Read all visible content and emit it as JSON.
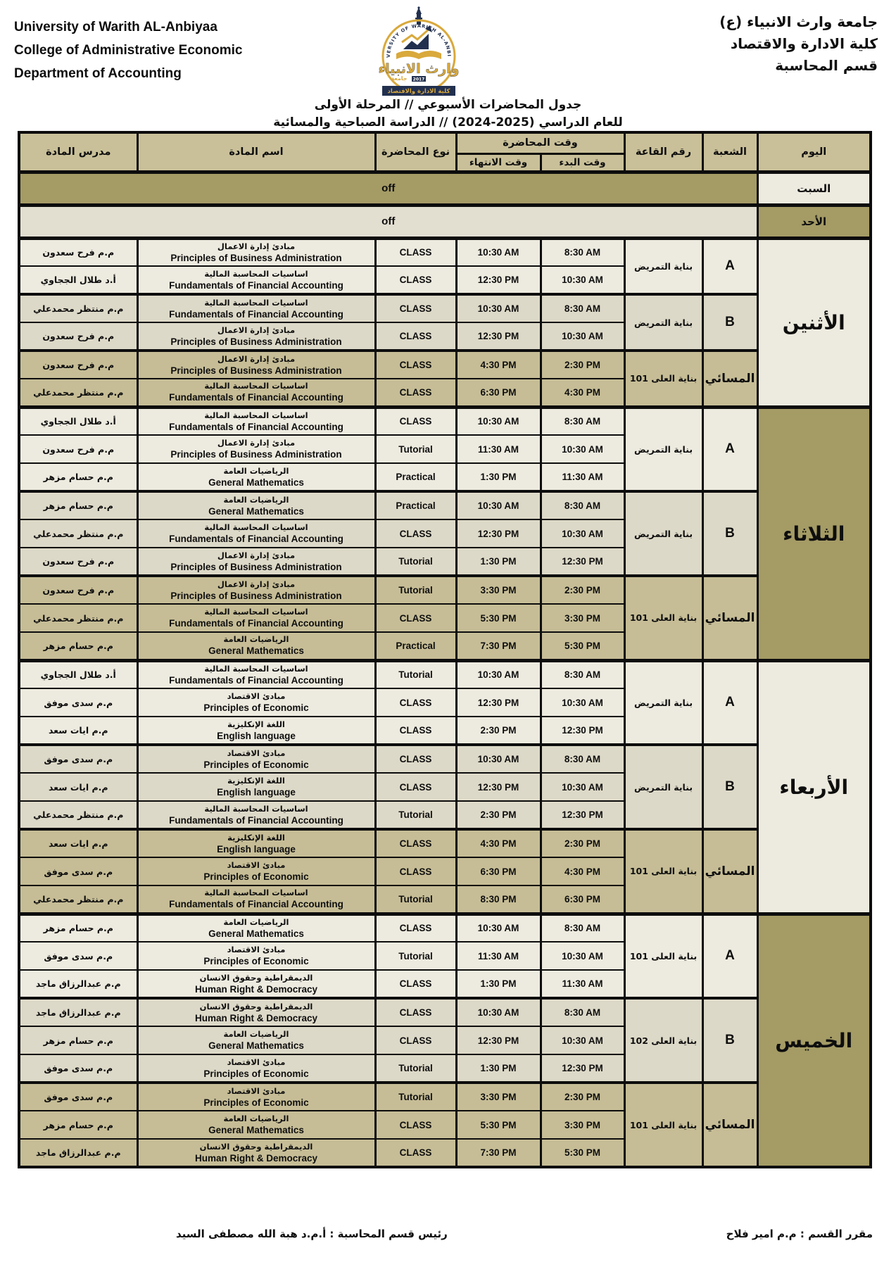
{
  "header": {
    "left_lines": [
      "University of Warith AL-Anbiyaa",
      "College of Administrative Economic",
      "Department of Accounting"
    ],
    "right_lines": [
      "جامعة وارث الانبياء (ع)",
      "كلية الادارة والاقتصاد",
      "قسم المحاسبة"
    ],
    "logo": {
      "arc_text": "UNIVERSITY OF WARITH AL-ANBIYAA",
      "calligraphy": "وارث الانبياء",
      "jamia": "جامعة",
      "year": "2017",
      "banner": "كلية الادارة والاقتصاد"
    }
  },
  "title": {
    "line1": "جدول المحاضرات الأسبوعي // المرحلة الأولى",
    "line2": "للعام الدراسي (2025-2024) // الدراسة الصباحية والمسائية"
  },
  "columns": {
    "day": "اليوم",
    "section": "الشعبة",
    "room": "رقم القاعة",
    "time": "وقت المحاضرة",
    "start": "وقت البدء",
    "end": "وقت الانتهاء",
    "type": "نوع المحاضرة",
    "subject": "اسم المادة",
    "teacher": "مدرس المادة"
  },
  "schedule": {
    "off_label": "off",
    "days": [
      {
        "name": "السبت",
        "off": true,
        "day_tone": "light",
        "off_tone": "dark"
      },
      {
        "name": "الأحد",
        "off": true,
        "day_tone": "dark",
        "off_tone": "light"
      },
      {
        "name": "الأثنين",
        "off": false,
        "day_tone": "light",
        "groups": [
          {
            "section": "A",
            "room": "بناية التمريض",
            "tone": "a",
            "evening": false,
            "rows": [
              {
                "teacher": "م.م فرح سعدون",
                "subject_ar": "مبادئ إدارة الاعمال",
                "subject_en": "Principles of Business Administration",
                "type": "CLASS",
                "start": "8:30 AM",
                "end": "10:30 AM"
              },
              {
                "teacher": "أ.د طلال الججاوي",
                "subject_ar": "اساسيات المحاسبة المالية",
                "subject_en": "Fundamentals of Financial Accounting",
                "type": "CLASS",
                "start": "10:30 AM",
                "end": "12:30 PM"
              }
            ]
          },
          {
            "section": "B",
            "room": "بناية التمريض",
            "tone": "b",
            "evening": false,
            "rows": [
              {
                "teacher": "م.م منتظر محمدعلي",
                "subject_ar": "اساسيات المحاسبة المالية",
                "subject_en": "Fundamentals of Financial Accounting",
                "type": "CLASS",
                "start": "8:30 AM",
                "end": "10:30 AM"
              },
              {
                "teacher": "م.م فرح سعدون",
                "subject_ar": "مبادئ إدارة الاعمال",
                "subject_en": "Principles of Business Administration",
                "type": "CLASS",
                "start": "10:30 AM",
                "end": "12:30 PM"
              }
            ]
          },
          {
            "section": "المسائي",
            "room": "بناية العلى 101",
            "tone": "e",
            "evening": true,
            "rows": [
              {
                "teacher": "م.م فرح سعدون",
                "subject_ar": "مبادئ إدارة الاعمال",
                "subject_en": "Principles of Business Administration",
                "type": "CLASS",
                "start": "2:30 PM",
                "end": "4:30 PM"
              },
              {
                "teacher": "م.م منتظر محمدعلي",
                "subject_ar": "اساسيات المحاسبة المالية",
                "subject_en": "Fundamentals of Financial Accounting",
                "type": "CLASS",
                "start": "4:30 PM",
                "end": "6:30 PM"
              }
            ]
          }
        ]
      },
      {
        "name": "الثلاثاء",
        "off": false,
        "day_tone": "dark",
        "groups": [
          {
            "section": "A",
            "room": "بناية التمريض",
            "tone": "a",
            "evening": false,
            "rows": [
              {
                "teacher": "أ.د طلال الججاوي",
                "subject_ar": "اساسيات المحاسبة المالية",
                "subject_en": "Fundamentals of Financial Accounting",
                "type": "CLASS",
                "start": "8:30 AM",
                "end": "10:30 AM"
              },
              {
                "teacher": "م.م فرح سعدون",
                "subject_ar": "مبادئ إدارة الاعمال",
                "subject_en": "Principles of Business Administration",
                "type": "Tutorial",
                "start": "10:30 AM",
                "end": "11:30 AM"
              },
              {
                "teacher": "م.م حسام مزهر",
                "subject_ar": "الرياضيات العامة",
                "subject_en": "General Mathematics",
                "type": "Practical",
                "start": "11:30 AM",
                "end": "1:30 PM"
              }
            ]
          },
          {
            "section": "B",
            "room": "بناية التمريض",
            "tone": "b",
            "evening": false,
            "rows": [
              {
                "teacher": "م.م حسام مزهر",
                "subject_ar": "الرياضيات العامة",
                "subject_en": "General Mathematics",
                "type": "Practical",
                "start": "8:30 AM",
                "end": "10:30 AM"
              },
              {
                "teacher": "م.م منتظر محمدعلي",
                "subject_ar": "اساسيات المحاسبة المالية",
                "subject_en": "Fundamentals of Financial Accounting",
                "type": "CLASS",
                "start": "10:30 AM",
                "end": "12:30 PM"
              },
              {
                "teacher": "م.م فرح سعدون",
                "subject_ar": "مبادئ إدارة الاعمال",
                "subject_en": "Principles of Business Administration",
                "type": "Tutorial",
                "start": "12:30 PM",
                "end": "1:30 PM"
              }
            ]
          },
          {
            "section": "المسائي",
            "room": "بناية العلى 101",
            "tone": "e",
            "evening": true,
            "rows": [
              {
                "teacher": "م.م فرح سعدون",
                "subject_ar": "مبادئ إدارة الاعمال",
                "subject_en": "Principles of Business Administration",
                "type": "Tutorial",
                "start": "2:30 PM",
                "end": "3:30 PM"
              },
              {
                "teacher": "م.م منتظر محمدعلي",
                "subject_ar": "اساسيات المحاسبة المالية",
                "subject_en": "Fundamentals of Financial Accounting",
                "type": "CLASS",
                "start": "3:30 PM",
                "end": "5:30 PM"
              },
              {
                "teacher": "م.م حسام مزهر",
                "subject_ar": "الرياضيات العامة",
                "subject_en": "General Mathematics",
                "type": "Practical",
                "start": "5:30 PM",
                "end": "7:30 PM"
              }
            ]
          }
        ]
      },
      {
        "name": "الأربعاء",
        "off": false,
        "day_tone": "light",
        "groups": [
          {
            "section": "A",
            "room": "بناية التمريض",
            "tone": "a",
            "evening": false,
            "rows": [
              {
                "teacher": "أ.د طلال الججاوي",
                "subject_ar": "اساسيات المحاسبة المالية",
                "subject_en": "Fundamentals of Financial Accounting",
                "type": "Tutorial",
                "start": "8:30 AM",
                "end": "10:30 AM"
              },
              {
                "teacher": "م.م سدى موفق",
                "subject_ar": "مبادئ الاقتصاد",
                "subject_en": "Principles of Economic",
                "type": "CLASS",
                "start": "10:30 AM",
                "end": "12:30 PM"
              },
              {
                "teacher": "م.م ايات سعد",
                "subject_ar": "اللغة الإنكليزية",
                "subject_en": "English language",
                "type": "CLASS",
                "start": "12:30 PM",
                "end": "2:30 PM"
              }
            ]
          },
          {
            "section": "B",
            "room": "بناية التمريض",
            "tone": "b",
            "evening": false,
            "rows": [
              {
                "teacher": "م.م سدى موفق",
                "subject_ar": "مبادئ الاقتصاد",
                "subject_en": "Principles of Economic",
                "type": "CLASS",
                "start": "8:30 AM",
                "end": "10:30 AM"
              },
              {
                "teacher": "م.م ايات سعد",
                "subject_ar": "اللغة الإنكليزية",
                "subject_en": "English language",
                "type": "CLASS",
                "start": "10:30 AM",
                "end": "12:30 PM"
              },
              {
                "teacher": "م.م منتظر محمدعلي",
                "subject_ar": "اساسيات المحاسبة المالية",
                "subject_en": "Fundamentals of Financial Accounting",
                "type": "Tutorial",
                "start": "12:30 PM",
                "end": "2:30 PM"
              }
            ]
          },
          {
            "section": "المسائي",
            "room": "بناية العلى 101",
            "tone": "e",
            "evening": true,
            "rows": [
              {
                "teacher": "م.م ايات سعد",
                "subject_ar": "اللغة الإنكليزية",
                "subject_en": "English language",
                "type": "CLASS",
                "start": "2:30 PM",
                "end": "4:30 PM"
              },
              {
                "teacher": "م.م سدى موفق",
                "subject_ar": "مبادئ الاقتصاد",
                "subject_en": "Principles of Economic",
                "type": "CLASS",
                "start": "4:30 PM",
                "end": "6:30 PM"
              },
              {
                "teacher": "م.م منتظر محمدعلي",
                "subject_ar": "اساسيات المحاسبة المالية",
                "subject_en": "Fundamentals of Financial Accounting",
                "type": "Tutorial",
                "start": "6:30 PM",
                "end": "8:30 PM"
              }
            ]
          }
        ]
      },
      {
        "name": "الخميس",
        "off": false,
        "day_tone": "dark",
        "groups": [
          {
            "section": "A",
            "room": "بناية العلى 101",
            "tone": "a",
            "evening": false,
            "rows": [
              {
                "teacher": "م.م حسام مزهر",
                "subject_ar": "الرياضيات العامة",
                "subject_en": "General Mathematics",
                "type": "CLASS",
                "start": "8:30 AM",
                "end": "10:30 AM"
              },
              {
                "teacher": "م.م سدى موفق",
                "subject_ar": "مبادئ الاقتصاد",
                "subject_en": "Principles of Economic",
                "type": "Tutorial",
                "start": "10:30 AM",
                "end": "11:30 AM"
              },
              {
                "teacher": "م.م عبدالرزاق ماجد",
                "subject_ar": "الديمقراطية وحقوق الانسان",
                "subject_en": "Human Right & Democracy",
                "type": "CLASS",
                "start": "11:30 AM",
                "end": "1:30 PM"
              }
            ]
          },
          {
            "section": "B",
            "room": "بناية العلى 102",
            "tone": "b",
            "evening": false,
            "rows": [
              {
                "teacher": "م.م عبدالرزاق ماجد",
                "subject_ar": "الديمقراطية وحقوق الانسان",
                "subject_en": "Human Right & Democracy",
                "type": "CLASS",
                "start": "8:30 AM",
                "end": "10:30 AM"
              },
              {
                "teacher": "م.م حسام مزهر",
                "subject_ar": "الرياضيات العامة",
                "subject_en": "General Mathematics",
                "type": "CLASS",
                "start": "10:30 AM",
                "end": "12:30 PM"
              },
              {
                "teacher": "م.م سدى موفق",
                "subject_ar": "مبادئ الاقتصاد",
                "subject_en": "Principles of Economic",
                "type": "Tutorial",
                "start": "12:30 PM",
                "end": "1:30 PM"
              }
            ]
          },
          {
            "section": "المسائي",
            "room": "بناية العلى 101",
            "tone": "e",
            "evening": true,
            "rows": [
              {
                "teacher": "م.م سدى موفق",
                "subject_ar": "مبادئ الاقتصاد",
                "subject_en": "Principles of Economic",
                "type": "Tutorial",
                "start": "2:30 PM",
                "end": "3:30 PM"
              },
              {
                "teacher": "م.م حسام مزهر",
                "subject_ar": "الرياضيات العامة",
                "subject_en": "General Mathematics",
                "type": "CLASS",
                "start": "3:30 PM",
                "end": "5:30 PM"
              },
              {
                "teacher": "م.م عبدالرزاق ماجد",
                "subject_ar": "الديمقراطية وحقوق الانسان",
                "subject_en": "Human Right & Democracy",
                "type": "CLASS",
                "start": "5:30 PM",
                "end": "7:30 PM"
              }
            ]
          }
        ]
      }
    ]
  },
  "footer": {
    "right": "مقرر القسم : م.م امير فلاح",
    "left": "رئيس قسم المحاسبة :  أ.م.د هبة الله مصطفى السيد"
  },
  "colors": {
    "header_bg": "#c9c099",
    "row_a": "#edeadf",
    "row_b": "#ddd9c8",
    "row_evening": "#c6bd96",
    "olive": "#a49b65",
    "off_light": "#e2ded0",
    "border": "#0d0d0d",
    "logo_gold": "#d9a93c",
    "logo_navy": "#22304f"
  }
}
